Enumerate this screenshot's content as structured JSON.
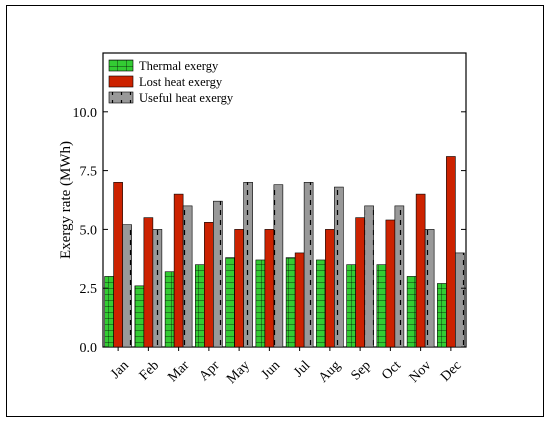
{
  "chart_data": {
    "type": "bar",
    "title": "",
    "xlabel": "",
    "ylabel": "Exergy rate (MWh)",
    "ylim": [
      0,
      12.5
    ],
    "yticks": [
      "0.0",
      "2.5",
      "5.0",
      "7.5",
      "10.0"
    ],
    "ytick_values": [
      0,
      2.5,
      5.0,
      7.5,
      10.0
    ],
    "grid": false,
    "legend_position": "top-left",
    "categories": [
      "Jan",
      "Feb",
      "Mar",
      "Apr",
      "May",
      "Jun",
      "Jul",
      "Aug",
      "Sep",
      "Oct",
      "Nov",
      "Dec"
    ],
    "series": [
      {
        "name": "Thermal exergy",
        "color": "#33cc33",
        "pattern": "grid",
        "values": [
          3.0,
          2.6,
          3.2,
          3.5,
          3.8,
          3.7,
          3.8,
          3.7,
          3.5,
          3.5,
          3.0,
          2.7
        ]
      },
      {
        "name": "Lost heat exergy",
        "color": "#cc2200",
        "pattern": "solid",
        "values": [
          7.0,
          5.5,
          6.5,
          5.3,
          5.0,
          5.0,
          4.0,
          5.0,
          5.5,
          5.4,
          6.5,
          8.1
        ]
      },
      {
        "name": "Useful heat exergy",
        "color": "#999999",
        "pattern": "dashed",
        "values": [
          5.2,
          5.0,
          6.0,
          6.2,
          7.0,
          6.9,
          7.0,
          6.8,
          6.0,
          6.0,
          5.0,
          4.0
        ]
      }
    ]
  }
}
